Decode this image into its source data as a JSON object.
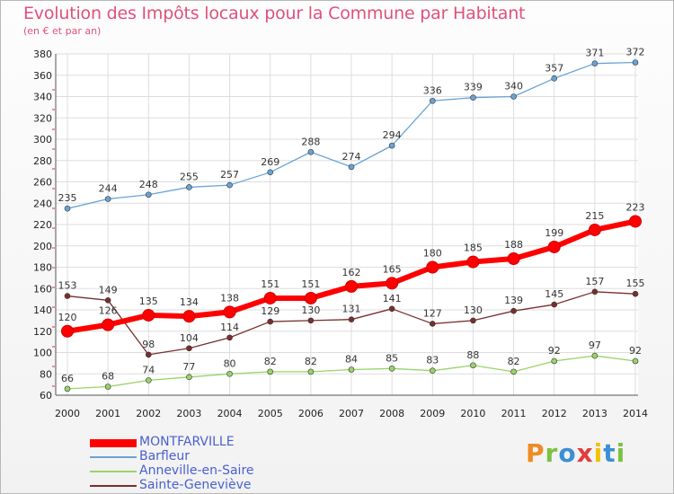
{
  "title": "Evolution des Impôts locaux pour la Commune par Habitant",
  "subtitle": "(en € et par an)",
  "logo": {
    "text": "Proxiti",
    "colors": [
      "#f08a24",
      "#7cc242",
      "#3a8fd6",
      "#e23c3c",
      "#f3c200",
      "#3a8fd6",
      "#7cc242"
    ]
  },
  "chart_data": {
    "type": "line",
    "x": [
      "2000",
      "2001",
      "2002",
      "2003",
      "2004",
      "2005",
      "2006",
      "2007",
      "2008",
      "2009",
      "2010",
      "2011",
      "2012",
      "2013",
      "2014"
    ],
    "ylim": [
      60,
      380
    ],
    "yticks": [
      60,
      80,
      100,
      120,
      140,
      160,
      180,
      200,
      220,
      240,
      260,
      280,
      300,
      320,
      340,
      360,
      380
    ],
    "grid": true,
    "legend_position": "bottom-left",
    "series": [
      {
        "name": "MONTFARVILLE",
        "color": "#ff0000",
        "values": [
          120,
          126,
          135,
          134,
          138,
          151,
          151,
          162,
          165,
          180,
          185,
          188,
          199,
          215,
          223
        ]
      },
      {
        "name": "Barfleur",
        "color": "#6aa3d5",
        "values": [
          235,
          244,
          248,
          255,
          257,
          269,
          288,
          274,
          294,
          336,
          339,
          340,
          357,
          371,
          372
        ]
      },
      {
        "name": "Anneville-en-Saire",
        "color": "#99d36a",
        "values": [
          66,
          68,
          74,
          77,
          80,
          82,
          82,
          84,
          85,
          83,
          88,
          82,
          92,
          97,
          92
        ]
      },
      {
        "name": "Sainte-Geneviève",
        "color": "#7a2e2e",
        "values": [
          153,
          149,
          98,
          104,
          114,
          129,
          130,
          131,
          141,
          127,
          130,
          139,
          145,
          157,
          155
        ]
      }
    ]
  }
}
